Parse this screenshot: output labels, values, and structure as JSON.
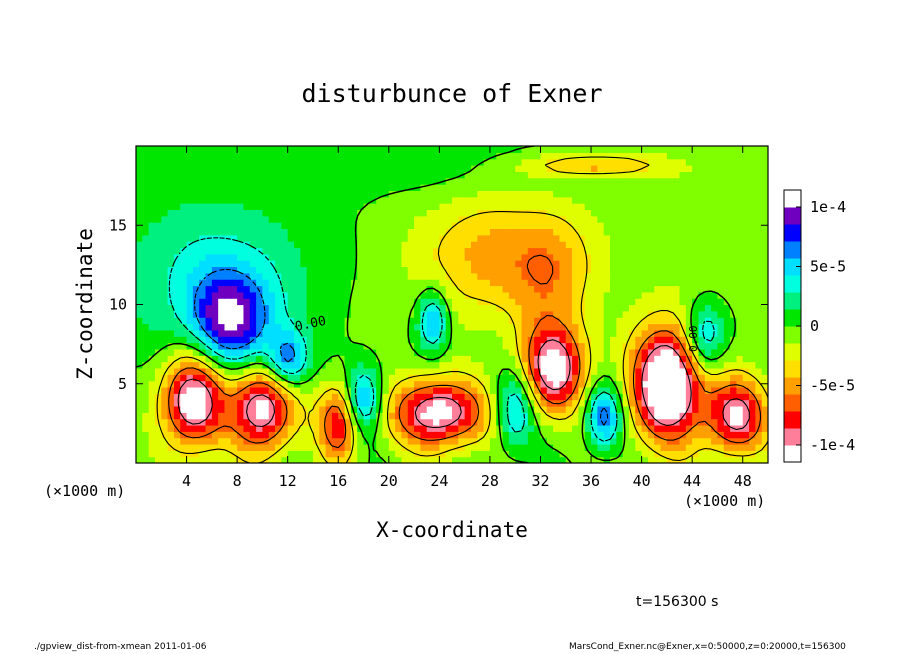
{
  "chart_data": {
    "type": "heatmap",
    "title": "disturbunce of Exner",
    "xlabel": "X-coordinate",
    "ylabel": "Z-coordinate",
    "x_unit_label_left": "(×1000 m)",
    "x_unit_label_right": "(×1000 m)",
    "xlim": [
      0,
      50
    ],
    "ylim": [
      0,
      20
    ],
    "xticks": [
      4,
      8,
      12,
      16,
      20,
      24,
      28,
      32,
      36,
      40,
      44,
      48
    ],
    "yticks": [
      5,
      10,
      15
    ],
    "colorbar": {
      "range": [
        -0.0001,
        0.0001
      ],
      "ticks": [
        {
          "value": 0.0001,
          "label": "1e-4"
        },
        {
          "value": 5e-05,
          "label": "5e-5"
        },
        {
          "value": 0,
          "label": "0"
        },
        {
          "value": -5e-05,
          "label": "-5e-5"
        },
        {
          "value": -0.0001,
          "label": "-1e-4"
        }
      ],
      "colors": [
        "#ffffff",
        "#ff7f9a",
        "#ff0000",
        "#ff5f00",
        "#ff9f00",
        "#ffdf00",
        "#dfff00",
        "#7fff00",
        "#00e600",
        "#00f07f",
        "#00ffdf",
        "#00dfff",
        "#007fff",
        "#0000ff",
        "#6f00bf",
        "#ffffff"
      ]
    },
    "contour_label": "0.00",
    "contour_label_2": "0.00"
  },
  "timestamp": "t=156300 s",
  "footer": {
    "left": "./gpview_dist-from-xmean  2011-01-06",
    "right": "MarsCond_Exner.nc@Exner,x=0:50000,z=0:20000,t=156300"
  }
}
